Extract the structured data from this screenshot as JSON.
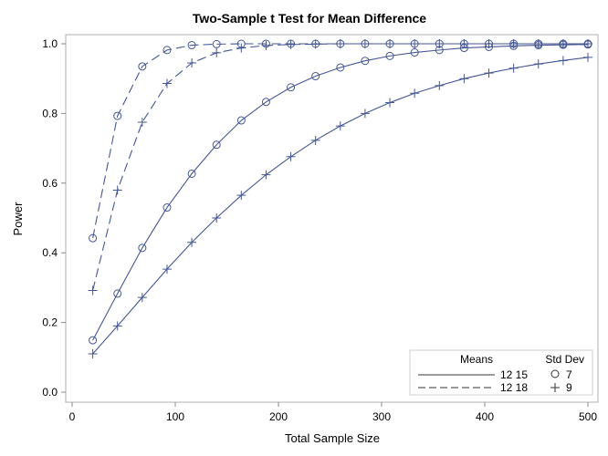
{
  "chart_data": {
    "type": "line",
    "title": "Two-Sample t Test for Mean Difference",
    "xlabel": "Total Sample Size",
    "ylabel": "Power",
    "xlim": [
      0,
      500
    ],
    "ylim": [
      0,
      1
    ],
    "xticks": [
      0,
      100,
      200,
      300,
      400,
      500
    ],
    "yticks": [
      "0.0",
      "0.2",
      "0.4",
      "0.6",
      "0.8",
      "1.0"
    ],
    "grid": false,
    "legend_placement": "bottom-right",
    "legend": {
      "means_header": "Means",
      "sd_header": "Std Dev",
      "means": [
        {
          "label": "12 15",
          "style": "solid"
        },
        {
          "label": "12 18",
          "style": "dashed"
        }
      ],
      "sds": [
        {
          "label": "7",
          "marker": "circle"
        },
        {
          "label": "9",
          "marker": "plus"
        }
      ]
    },
    "color": "#445694",
    "x": [
      20,
      44,
      68,
      92,
      116,
      140,
      164,
      188,
      212,
      236,
      260,
      284,
      308,
      332,
      356,
      380,
      404,
      428,
      452,
      476,
      500
    ],
    "series": [
      {
        "means": "12 15",
        "sd": "7",
        "style": "solid",
        "marker": "circle",
        "values": [
          0.149,
          0.283,
          0.414,
          0.53,
          0.627,
          0.71,
          0.78,
          0.833,
          0.875,
          0.907,
          0.932,
          0.951,
          0.965,
          0.975,
          0.982,
          0.988,
          0.991,
          0.994,
          0.996,
          0.997,
          0.998
        ]
      },
      {
        "means": "12 15",
        "sd": "9",
        "style": "solid",
        "marker": "plus",
        "values": [
          0.11,
          0.19,
          0.272,
          0.353,
          0.43,
          0.5,
          0.565,
          0.624,
          0.676,
          0.723,
          0.764,
          0.8,
          0.831,
          0.858,
          0.88,
          0.9,
          0.916,
          0.93,
          0.942,
          0.952,
          0.961
        ]
      },
      {
        "means": "12 18",
        "sd": "7",
        "style": "dashed",
        "marker": "circle",
        "values": [
          0.442,
          0.793,
          0.935,
          0.982,
          0.996,
          0.999,
          1,
          1,
          1,
          1,
          1,
          1,
          1,
          1,
          1,
          1,
          1,
          1,
          1,
          1,
          1
        ]
      },
      {
        "means": "12 18",
        "sd": "9",
        "style": "dashed",
        "marker": "plus",
        "values": [
          0.292,
          0.58,
          0.775,
          0.886,
          0.945,
          0.974,
          0.988,
          0.995,
          0.998,
          0.999,
          1,
          1,
          1,
          1,
          1,
          1,
          1,
          1,
          1,
          1,
          1
        ]
      }
    ]
  }
}
